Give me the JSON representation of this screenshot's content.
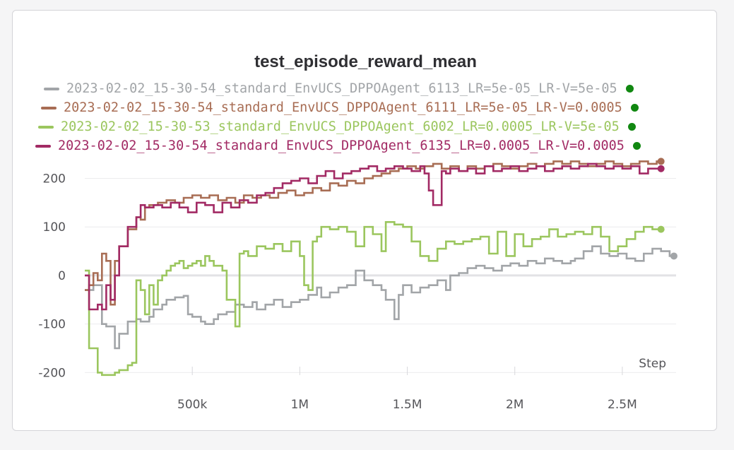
{
  "chart_data": {
    "type": "line",
    "title": "test_episode_reward_mean",
    "xlabel": "Step",
    "ylabel": "",
    "xlim": [
      0,
      2750000
    ],
    "ylim": [
      -230,
      240
    ],
    "x_ticks": [
      {
        "value": 500000,
        "label": "500k"
      },
      {
        "value": 1000000,
        "label": "1M"
      },
      {
        "value": 1500000,
        "label": "1.5M"
      },
      {
        "value": 2000000,
        "label": "2M"
      },
      {
        "value": 2500000,
        "label": "2.5M"
      }
    ],
    "y_ticks": [
      {
        "value": 200,
        "label": "200"
      },
      {
        "value": 100,
        "label": "100"
      },
      {
        "value": 0,
        "label": "0"
      },
      {
        "value": -100,
        "label": "-100"
      },
      {
        "value": -200,
        "label": "-200"
      }
    ],
    "grid": true,
    "legend_position": "top",
    "series": [
      {
        "name": "2023-02-02_15-30-54_standard_EnvUCS_DPPOAgent_6113_LR=5e-05_LR-V=5e-05",
        "color": "#a2a5a8",
        "legend_status_color": "#118811",
        "x": [
          0,
          40000,
          80000,
          100000,
          140000,
          160000,
          200000,
          240000,
          260000,
          300000,
          320000,
          360000,
          380000,
          420000,
          460000,
          480000,
          500000,
          540000,
          560000,
          600000,
          620000,
          660000,
          700000,
          740000,
          780000,
          800000,
          840000,
          880000,
          920000,
          960000,
          1000000,
          1040000,
          1080000,
          1100000,
          1140000,
          1180000,
          1220000,
          1260000,
          1300000,
          1340000,
          1380000,
          1400000,
          1440000,
          1460000,
          1480000,
          1520000,
          1560000,
          1600000,
          1640000,
          1680000,
          1700000,
          1740000,
          1780000,
          1820000,
          1860000,
          1900000,
          1940000,
          1980000,
          2020000,
          2060000,
          2100000,
          2140000,
          2180000,
          2220000,
          2260000,
          2280000,
          2320000,
          2360000,
          2400000,
          2440000,
          2480000,
          2520000,
          2560000,
          2600000,
          2640000,
          2680000,
          2720000,
          2740000
        ],
        "values": [
          -30,
          -20,
          -100,
          -105,
          -150,
          -120,
          -95,
          -90,
          -95,
          -85,
          -70,
          -60,
          -50,
          -45,
          -42,
          -80,
          -85,
          -95,
          -100,
          -90,
          -80,
          -75,
          -60,
          -65,
          -55,
          -70,
          -60,
          -50,
          -65,
          -55,
          -50,
          -40,
          -25,
          -45,
          -35,
          -25,
          -20,
          10,
          -10,
          -20,
          -30,
          -50,
          -90,
          -40,
          -20,
          -35,
          -25,
          -20,
          -10,
          -30,
          0,
          5,
          15,
          20,
          15,
          10,
          20,
          25,
          20,
          30,
          25,
          35,
          30,
          25,
          30,
          35,
          50,
          60,
          45,
          40,
          45,
          35,
          30,
          45,
          55,
          50,
          40,
          40
        ]
      },
      {
        "name": "2023-02-02_15-30-54_standard_EnvUCS_DPPOAgent_6111_LR=5e-05_LR-V=0.0005",
        "color": "#a86d54",
        "legend_status_color": "#118811",
        "x": [
          0,
          20000,
          40000,
          60000,
          80000,
          100000,
          120000,
          140000,
          160000,
          200000,
          240000,
          260000,
          280000,
          300000,
          340000,
          380000,
          420000,
          460000,
          500000,
          540000,
          580000,
          620000,
          660000,
          700000,
          740000,
          780000,
          820000,
          860000,
          900000,
          940000,
          980000,
          1020000,
          1060000,
          1100000,
          1140000,
          1180000,
          1220000,
          1260000,
          1300000,
          1340000,
          1380000,
          1420000,
          1460000,
          1500000,
          1540000,
          1580000,
          1620000,
          1660000,
          1700000,
          1740000,
          1780000,
          1820000,
          1860000,
          1900000,
          1940000,
          1980000,
          2020000,
          2060000,
          2100000,
          2140000,
          2180000,
          2220000,
          2260000,
          2300000,
          2340000,
          2380000,
          2420000,
          2460000,
          2500000,
          2540000,
          2580000,
          2620000,
          2660000,
          2680000
        ],
        "values": [
          -30,
          -20,
          5,
          -10,
          45,
          30,
          -60,
          30,
          60,
          95,
          120,
          115,
          140,
          145,
          150,
          155,
          150,
          160,
          165,
          160,
          165,
          155,
          160,
          150,
          165,
          160,
          165,
          160,
          170,
          175,
          165,
          170,
          180,
          175,
          190,
          185,
          195,
          190,
          200,
          205,
          210,
          215,
          220,
          225,
          220,
          225,
          230,
          220,
          225,
          215,
          225,
          220,
          225,
          230,
          225,
          220,
          225,
          230,
          225,
          230,
          235,
          230,
          235,
          230,
          225,
          230,
          235,
          230,
          225,
          230,
          235,
          230,
          235,
          235
        ]
      },
      {
        "name": "2023-02-02_15-30-53_standard_EnvUCS_DPPOAgent_6002_LR=0.0005_LR-V=5e-05",
        "color": "#9bc65e",
        "legend_status_color": "#118811",
        "x": [
          0,
          20000,
          60000,
          80000,
          100000,
          140000,
          160000,
          200000,
          220000,
          240000,
          260000,
          280000,
          300000,
          320000,
          340000,
          360000,
          380000,
          400000,
          420000,
          440000,
          460000,
          480000,
          500000,
          520000,
          540000,
          560000,
          580000,
          600000,
          640000,
          660000,
          700000,
          720000,
          740000,
          760000,
          800000,
          840000,
          880000,
          920000,
          960000,
          1000000,
          1020000,
          1040000,
          1060000,
          1080000,
          1100000,
          1140000,
          1180000,
          1220000,
          1260000,
          1300000,
          1340000,
          1380000,
          1400000,
          1440000,
          1480000,
          1520000,
          1560000,
          1600000,
          1640000,
          1680000,
          1720000,
          1760000,
          1800000,
          1840000,
          1880000,
          1920000,
          1960000,
          2000000,
          2040000,
          2080000,
          2120000,
          2160000,
          2200000,
          2240000,
          2280000,
          2320000,
          2360000,
          2400000,
          2440000,
          2480000,
          2520000,
          2560000,
          2600000,
          2640000,
          2680000
        ],
        "values": [
          10,
          -150,
          -200,
          -205,
          -205,
          -200,
          -195,
          -185,
          -180,
          -10,
          -30,
          -80,
          -20,
          -60,
          -10,
          0,
          10,
          20,
          25,
          30,
          15,
          20,
          25,
          30,
          20,
          40,
          30,
          20,
          10,
          -50,
          -105,
          45,
          50,
          40,
          60,
          55,
          65,
          50,
          70,
          40,
          -20,
          -30,
          70,
          80,
          100,
          95,
          100,
          90,
          60,
          100,
          85,
          50,
          110,
          105,
          100,
          70,
          40,
          30,
          55,
          70,
          65,
          70,
          75,
          80,
          45,
          90,
          40,
          85,
          60,
          75,
          80,
          95,
          80,
          85,
          90,
          85,
          100,
          80,
          50,
          60,
          75,
          90,
          100,
          95,
          95
        ]
      },
      {
        "name": "2023-02-02_15-30-54_standard_EnvUCS_DPPOAgent_6135_LR=0.0005_LR-V=0.0005",
        "color": "#a22a64",
        "legend_status_color": "#118811",
        "x": [
          0,
          20000,
          60000,
          80000,
          100000,
          120000,
          140000,
          160000,
          200000,
          240000,
          260000,
          280000,
          320000,
          360000,
          400000,
          440000,
          480000,
          520000,
          560000,
          600000,
          640000,
          680000,
          720000,
          760000,
          800000,
          840000,
          880000,
          920000,
          960000,
          1000000,
          1040000,
          1080000,
          1120000,
          1160000,
          1200000,
          1240000,
          1280000,
          1320000,
          1360000,
          1400000,
          1440000,
          1480000,
          1520000,
          1560000,
          1580000,
          1600000,
          1620000,
          1660000,
          1680000,
          1700000,
          1740000,
          1780000,
          1820000,
          1860000,
          1900000,
          1940000,
          1980000,
          2020000,
          2060000,
          2100000,
          2140000,
          2180000,
          2220000,
          2260000,
          2300000,
          2340000,
          2380000,
          2420000,
          2460000,
          2500000,
          2540000,
          2580000,
          2620000,
          2660000,
          2680000
        ],
        "values": [
          0,
          -70,
          -60,
          -70,
          -20,
          -50,
          0,
          60,
          100,
          120,
          145,
          140,
          145,
          140,
          150,
          140,
          130,
          150,
          145,
          130,
          150,
          140,
          155,
          150,
          165,
          170,
          180,
          190,
          195,
          200,
          190,
          205,
          215,
          200,
          210,
          215,
          220,
          225,
          215,
          220,
          225,
          220,
          215,
          225,
          210,
          175,
          145,
          215,
          210,
          220,
          215,
          220,
          210,
          225,
          215,
          220,
          225,
          215,
          220,
          225,
          215,
          220,
          225,
          220,
          225,
          230,
          225,
          220,
          225,
          220,
          225,
          210,
          220,
          220,
          220
        ]
      }
    ]
  }
}
